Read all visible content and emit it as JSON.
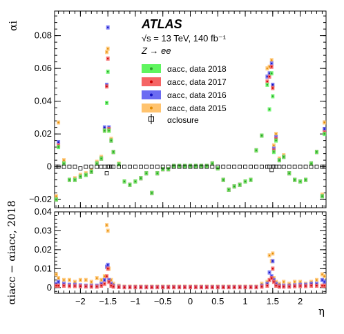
{
  "header": {
    "atlas_label": "ATLAS",
    "energy_lumi": "√s = 13 TeV, 140 fb⁻¹",
    "process": "Z → ee"
  },
  "legend": {
    "placement": "top-right",
    "entries": [
      {
        "key": "d2018",
        "text": "αacc, data 2018",
        "color": "#5ff55f"
      },
      {
        "key": "d2017",
        "text": "αacc, data 2017",
        "color": "#f56464"
      },
      {
        "key": "d2016",
        "text": "αacc, data 2016",
        "color": "#6b6bf2"
      },
      {
        "key": "d2015",
        "text": "αacc, data 2015",
        "color": "#ffc36e"
      },
      {
        "key": "closure",
        "text": "αclosure",
        "color": "#000000"
      }
    ]
  },
  "chart_data": [
    {
      "type": "scatter",
      "panel": "top",
      "ylabel": "αi",
      "xlabel": "",
      "xlim": [
        -2.47,
        2.47
      ],
      "ylim": [
        -0.025,
        0.095
      ],
      "xticks": [
        -2,
        -1.5,
        -1,
        -0.5,
        0,
        0.5,
        1,
        1.5,
        2
      ],
      "xtick_labels": [
        "",
        "",
        "",
        "",
        "",
        "",
        "",
        "",
        ""
      ],
      "yticks": [
        -0.02,
        0,
        0.02,
        0.04,
        0.06,
        0.08
      ],
      "ytick_labels": [
        "−0.02",
        "0",
        "0.02",
        "0.04",
        "0.06",
        "0.08"
      ],
      "x": [
        -2.44,
        -2.4,
        -2.3,
        -2.2,
        -2.1,
        -2.0,
        -1.9,
        -1.8,
        -1.7,
        -1.62,
        -1.56,
        -1.52,
        -1.5,
        -1.48,
        -1.44,
        -1.4,
        -1.3,
        -1.2,
        -1.1,
        -1.0,
        -0.9,
        -0.8,
        -0.7,
        -0.6,
        -0.5,
        -0.4,
        -0.3,
        -0.2,
        -0.1,
        0.0,
        0.1,
        0.2,
        0.3,
        0.4,
        0.5,
        0.6,
        0.7,
        0.8,
        0.9,
        1.0,
        1.1,
        1.2,
        1.3,
        1.4,
        1.44,
        1.48,
        1.5,
        1.52,
        1.56,
        1.62,
        1.7,
        1.8,
        1.9,
        2.0,
        2.1,
        2.2,
        2.3,
        2.4,
        2.44
      ],
      "series": [
        {
          "name": "αacc, data 2018",
          "values": [
            -0.02,
            0.012,
            0.002,
            -0.008,
            -0.008,
            -0.006,
            -0.005,
            -0.003,
            0.002,
            0.005,
            0.022,
            0.039,
            0.058,
            0.022,
            0.016,
            0.009,
            0.0015,
            -0.009,
            -0.011,
            -0.009,
            -0.007,
            -0.004,
            -0.016,
            -0.004,
            -0.0015,
            -0.0015,
            0.0005,
            0.0005,
            0.0005,
            0.0005,
            0.0005,
            0.0005,
            0.0005,
            0.002,
            -0.001,
            -0.008,
            -0.014,
            -0.012,
            -0.011,
            -0.009,
            -0.008,
            0.01,
            0.019,
            0.05,
            0.035,
            0.057,
            0.043,
            0.009,
            0.016,
            0.004,
            0.006,
            -0.004,
            -0.008,
            -0.009,
            -0.008,
            0.002,
            0.009,
            -0.018,
            0.02
          ]
        },
        {
          "name": "αacc, data 2017",
          "values": [
            -0.02,
            0.013,
            0.002,
            -0.008,
            -0.008,
            -0.006,
            -0.005,
            -0.003,
            0.002,
            0.005,
            0.022,
            0.049,
            0.066,
            0.023,
            0.016,
            0.009,
            0.0015,
            -0.009,
            -0.011,
            -0.009,
            -0.007,
            -0.004,
            -0.016,
            -0.004,
            -0.0015,
            -0.0015,
            0.0005,
            0.0005,
            0.0005,
            0.0005,
            0.0005,
            0.0005,
            0.0005,
            0.002,
            -0.001,
            -0.008,
            -0.014,
            -0.012,
            -0.011,
            -0.009,
            -0.008,
            0.01,
            0.019,
            0.052,
            0.055,
            0.061,
            0.048,
            0.01,
            0.017,
            0.004,
            0.006,
            -0.004,
            -0.008,
            -0.009,
            -0.008,
            0.002,
            0.009,
            -0.018,
            0.021
          ]
        },
        {
          "name": "αacc, data 2016",
          "values": [
            -0.02,
            0.015,
            0.002,
            -0.008,
            -0.008,
            -0.006,
            -0.005,
            -0.003,
            0.002,
            0.005,
            0.024,
            0.05,
            0.085,
            0.024,
            0.016,
            0.009,
            0.0015,
            -0.009,
            -0.011,
            -0.009,
            -0.007,
            -0.004,
            -0.016,
            -0.004,
            -0.0015,
            -0.0015,
            0.0005,
            0.0005,
            0.0005,
            0.0005,
            0.0005,
            0.0005,
            0.0005,
            0.002,
            -0.001,
            -0.008,
            -0.014,
            -0.012,
            -0.011,
            -0.009,
            -0.008,
            0.01,
            0.019,
            0.055,
            0.057,
            0.063,
            0.05,
            0.011,
            0.018,
            0.004,
            0.006,
            -0.004,
            -0.008,
            -0.009,
            -0.008,
            0.002,
            0.009,
            -0.018,
            0.023
          ]
        },
        {
          "name": "αacc, data 2015",
          "values": [
            -0.018,
            0.027,
            0.004,
            -0.008,
            -0.007,
            -0.005,
            -0.004,
            -0.002,
            0.003,
            0.006,
            0.023,
            0.07,
            0.072,
            0.022,
            0.017,
            0.009,
            0.002,
            -0.009,
            -0.011,
            -0.009,
            -0.007,
            -0.004,
            -0.016,
            -0.004,
            -0.0015,
            -0.0015,
            0.0005,
            0.0005,
            0.0005,
            0.0005,
            0.0005,
            0.0005,
            0.0005,
            0.002,
            -0.001,
            -0.008,
            -0.014,
            -0.012,
            -0.011,
            -0.009,
            -0.008,
            0.01,
            0.019,
            0.06,
            0.061,
            0.065,
            0.049,
            0.013,
            0.02,
            0.005,
            0.007,
            -0.004,
            -0.008,
            -0.009,
            -0.008,
            0.002,
            0.009,
            -0.017,
            0.027
          ]
        },
        {
          "name": "αclosure",
          "values": [
            0.0,
            0.0,
            0.0,
            0.0,
            0.0,
            -0.001,
            0.0,
            0.0,
            0.0,
            0.0,
            0.0,
            -0.004,
            0.0,
            0.0,
            0.0,
            0.0,
            0.0,
            0.0,
            0.0,
            0.0,
            0.0,
            0.0,
            0.0,
            0.0,
            0.0,
            0.0,
            0.0,
            0.0,
            0.0,
            0.0,
            0.0,
            0.0,
            0.0,
            0.0,
            0.0,
            0.0,
            0.0,
            0.0,
            0.0,
            0.0,
            0.0,
            0.0,
            0.0,
            0.0,
            0.0,
            -0.002,
            0.0,
            0.0,
            0.0,
            0.0,
            0.0,
            0.0,
            0.0,
            0.0,
            0.0,
            0.0,
            0.0,
            0.0,
            0.0
          ]
        }
      ]
    },
    {
      "type": "scatter",
      "panel": "bottom",
      "ylabel": "αiacc − αiacc, 2018",
      "xlabel": "η",
      "xlim": [
        -2.47,
        2.47
      ],
      "ylim": [
        -0.003,
        0.04
      ],
      "xticks": [
        -2,
        -1.5,
        -1,
        -0.5,
        0,
        0.5,
        1,
        1.5,
        2
      ],
      "xtick_labels": [
        "−2",
        "−1.5",
        "−1",
        "−0.5",
        "0",
        "0.5",
        "1",
        "1.5",
        "2"
      ],
      "yticks": [
        0,
        0.01,
        0.02,
        0.03,
        0.04
      ],
      "ytick_labels": [
        "0",
        "0.01",
        "0.02",
        "0.03",
        "0.04"
      ],
      "x": [
        -2.44,
        -2.4,
        -2.3,
        -2.2,
        -2.1,
        -2.0,
        -1.9,
        -1.8,
        -1.7,
        -1.62,
        -1.56,
        -1.52,
        -1.5,
        -1.48,
        -1.44,
        -1.4,
        -1.3,
        -1.2,
        -1.1,
        -1.0,
        -0.9,
        -0.8,
        -0.7,
        -0.6,
        -0.5,
        -0.4,
        -0.3,
        -0.2,
        -0.1,
        0.0,
        0.1,
        0.2,
        0.3,
        0.4,
        0.5,
        0.6,
        0.7,
        0.8,
        0.9,
        1.0,
        1.1,
        1.2,
        1.3,
        1.4,
        1.44,
        1.48,
        1.5,
        1.52,
        1.56,
        1.62,
        1.7,
        1.8,
        1.9,
        2.0,
        2.1,
        2.2,
        2.3,
        2.4,
        2.44
      ],
      "series": [
        {
          "name": "αacc, data 2017",
          "values": [
            0.001,
            0.001,
            0.001,
            0.0008,
            0.0008,
            0.0007,
            0.0006,
            0.0005,
            0.0005,
            0.001,
            0.002,
            0.006,
            0.01,
            0.003,
            0.001,
            0.0005,
            0.0003,
            0.0002,
            0.0002,
            0.0002,
            0.0002,
            0.0002,
            0.0002,
            0.0002,
            0.0002,
            0.0002,
            0.0002,
            0.0002,
            0.0002,
            0.0002,
            0.0002,
            0.0002,
            0.0002,
            0.0002,
            0.0002,
            0.0002,
            0.0002,
            0.0002,
            0.0002,
            0.0002,
            0.0002,
            0.0002,
            0.0005,
            0.001,
            0.004,
            0.005,
            0.01,
            0.003,
            0.001,
            0.0005,
            0.0005,
            0.0005,
            0.0007,
            0.0008,
            0.0008,
            0.001,
            0.001,
            0.001,
            0.001
          ]
        },
        {
          "name": "αacc, data 2016",
          "values": [
            0.002,
            0.003,
            0.002,
            0.0015,
            0.0015,
            0.0012,
            0.001,
            0.001,
            0.001,
            0.002,
            0.004,
            0.011,
            0.012,
            0.004,
            0.002,
            0.001,
            0.0005,
            0.0003,
            0.0003,
            0.0003,
            0.0003,
            0.0003,
            0.0003,
            0.0003,
            0.0003,
            0.0003,
            0.0003,
            0.0003,
            0.0003,
            0.0003,
            0.0003,
            0.0003,
            0.0003,
            0.0003,
            0.0003,
            0.0003,
            0.0003,
            0.0003,
            0.0003,
            0.0003,
            0.0003,
            0.0003,
            0.001,
            0.002,
            0.008,
            0.006,
            0.014,
            0.004,
            0.002,
            0.001,
            0.001,
            0.001,
            0.0012,
            0.0015,
            0.0015,
            0.002,
            0.002,
            0.004,
            0.003
          ]
        },
        {
          "name": "αacc, data 2015",
          "values": [
            0.007,
            0.005,
            0.004,
            0.004,
            0.003,
            0.004,
            0.004,
            0.003,
            0.005,
            0.004,
            0.006,
            0.033,
            0.03,
            0.01,
            0.004,
            0.002,
            0.001,
            0.0005,
            0.0005,
            0.0005,
            0.0005,
            0.0005,
            0.0005,
            0.0005,
            0.0005,
            0.0005,
            0.0005,
            0.0005,
            0.0005,
            0.0005,
            0.0005,
            0.0005,
            0.0005,
            0.0005,
            0.0005,
            0.0005,
            0.0005,
            0.0005,
            0.0005,
            0.0005,
            0.0005,
            0.0005,
            0.002,
            0.003,
            0.017,
            0.014,
            0.018,
            0.005,
            0.003,
            0.002,
            0.003,
            0.002,
            0.003,
            0.003,
            0.002,
            0.003,
            0.004,
            0.007,
            0.006
          ]
        }
      ]
    }
  ]
}
